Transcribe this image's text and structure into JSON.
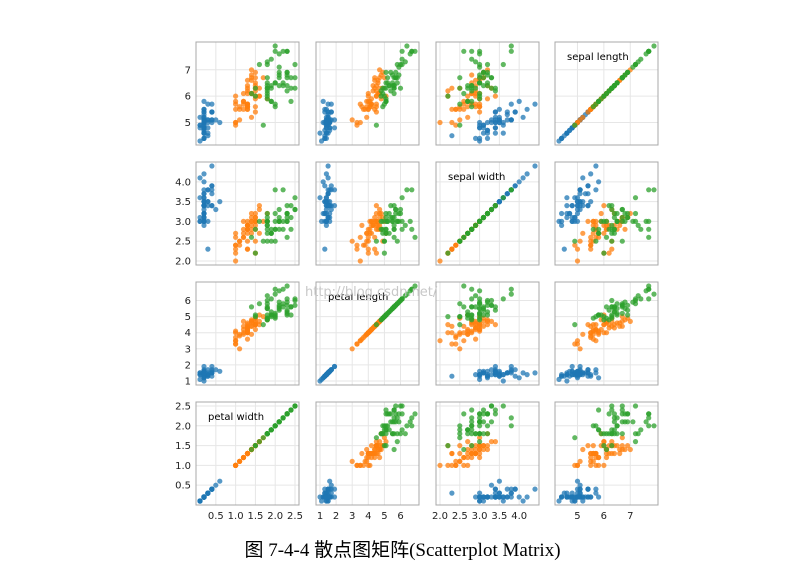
{
  "caption": "图 7-4-4  散点图矩阵(Scatterplot Matrix)",
  "watermark": "http://blog.csdn.net/",
  "chart_data": {
    "type": "scatter",
    "grid": true,
    "variables": [
      "sepal length",
      "sepal width",
      "petal length",
      "petal width"
    ],
    "diagonal_labels": [
      "sepal length",
      "sepal width",
      "petal length",
      "petal width"
    ],
    "ranges": [
      [
        4.3,
        7.9
      ],
      [
        2.0,
        4.4
      ],
      [
        1.0,
        6.9
      ],
      [
        0.1,
        2.5
      ]
    ],
    "ticks": [
      [
        "5",
        "6",
        "7"
      ],
      [
        "2.0",
        "2.5",
        "3.0",
        "3.5",
        "4.0"
      ],
      [
        "1",
        "2",
        "3",
        "4",
        "5",
        "6"
      ],
      [
        "0.5",
        "1.0",
        "1.5",
        "2.0",
        "2.5"
      ]
    ],
    "tick_values": [
      [
        5,
        6,
        7
      ],
      [
        2.0,
        2.5,
        3.0,
        3.5,
        4.0
      ],
      [
        1,
        2,
        3,
        4,
        5,
        6
      ],
      [
        0.5,
        1.0,
        1.5,
        2.0,
        2.5
      ]
    ],
    "series_colors": [
      "#1f77b4",
      "#ff7f0e",
      "#2ca02c"
    ],
    "series": [
      {
        "color": "#1f77b4",
        "points": [
          [
            5.1,
            3.5,
            1.4,
            0.2
          ],
          [
            4.9,
            3.0,
            1.4,
            0.2
          ],
          [
            4.7,
            3.2,
            1.3,
            0.2
          ],
          [
            4.6,
            3.1,
            1.5,
            0.2
          ],
          [
            5.0,
            3.6,
            1.4,
            0.2
          ],
          [
            5.4,
            3.9,
            1.7,
            0.4
          ],
          [
            4.6,
            3.4,
            1.4,
            0.3
          ],
          [
            5.0,
            3.4,
            1.5,
            0.2
          ],
          [
            4.4,
            2.9,
            1.4,
            0.2
          ],
          [
            4.9,
            3.1,
            1.5,
            0.1
          ],
          [
            5.4,
            3.7,
            1.5,
            0.2
          ],
          [
            4.8,
            3.4,
            1.6,
            0.2
          ],
          [
            4.8,
            3.0,
            1.4,
            0.1
          ],
          [
            4.3,
            3.0,
            1.1,
            0.1
          ],
          [
            5.8,
            4.0,
            1.2,
            0.2
          ],
          [
            5.7,
            4.4,
            1.5,
            0.4
          ],
          [
            5.4,
            3.9,
            1.3,
            0.4
          ],
          [
            5.1,
            3.5,
            1.4,
            0.3
          ],
          [
            5.7,
            3.8,
            1.7,
            0.3
          ],
          [
            5.1,
            3.8,
            1.5,
            0.3
          ],
          [
            5.4,
            3.4,
            1.7,
            0.2
          ],
          [
            5.1,
            3.7,
            1.5,
            0.4
          ],
          [
            4.6,
            3.6,
            1.0,
            0.2
          ],
          [
            5.1,
            3.3,
            1.7,
            0.5
          ],
          [
            4.8,
            3.4,
            1.9,
            0.2
          ],
          [
            5.0,
            3.0,
            1.6,
            0.2
          ],
          [
            5.0,
            3.4,
            1.6,
            0.4
          ],
          [
            5.2,
            3.5,
            1.5,
            0.2
          ],
          [
            5.2,
            3.4,
            1.4,
            0.2
          ],
          [
            4.7,
            3.2,
            1.6,
            0.2
          ],
          [
            4.8,
            3.1,
            1.6,
            0.2
          ],
          [
            5.4,
            3.4,
            1.5,
            0.4
          ],
          [
            5.2,
            4.1,
            1.5,
            0.1
          ],
          [
            5.5,
            4.2,
            1.4,
            0.2
          ],
          [
            4.9,
            3.1,
            1.5,
            0.2
          ],
          [
            5.0,
            3.2,
            1.2,
            0.2
          ],
          [
            5.5,
            3.5,
            1.3,
            0.2
          ],
          [
            4.9,
            3.6,
            1.4,
            0.1
          ],
          [
            4.4,
            3.0,
            1.3,
            0.2
          ],
          [
            5.1,
            3.4,
            1.5,
            0.2
          ],
          [
            5.0,
            3.5,
            1.3,
            0.3
          ],
          [
            4.5,
            2.3,
            1.3,
            0.3
          ],
          [
            4.4,
            3.2,
            1.3,
            0.2
          ],
          [
            5.0,
            3.5,
            1.6,
            0.6
          ],
          [
            5.1,
            3.8,
            1.9,
            0.4
          ],
          [
            4.8,
            3.0,
            1.4,
            0.3
          ],
          [
            5.1,
            3.8,
            1.6,
            0.2
          ],
          [
            4.6,
            3.2,
            1.4,
            0.2
          ],
          [
            5.3,
            3.7,
            1.5,
            0.2
          ],
          [
            5.0,
            3.3,
            1.4,
            0.2
          ]
        ]
      },
      {
        "color": "#ff7f0e",
        "points": [
          [
            7.0,
            3.2,
            4.7,
            1.4
          ],
          [
            6.4,
            3.2,
            4.5,
            1.5
          ],
          [
            6.9,
            3.1,
            4.9,
            1.5
          ],
          [
            5.5,
            2.3,
            4.0,
            1.3
          ],
          [
            6.5,
            2.8,
            4.6,
            1.5
          ],
          [
            5.7,
            2.8,
            4.5,
            1.3
          ],
          [
            6.3,
            3.3,
            4.7,
            1.6
          ],
          [
            4.9,
            2.4,
            3.3,
            1.0
          ],
          [
            6.6,
            2.9,
            4.6,
            1.3
          ],
          [
            5.2,
            2.7,
            3.9,
            1.4
          ],
          [
            5.0,
            2.0,
            3.5,
            1.0
          ],
          [
            5.9,
            3.0,
            4.2,
            1.5
          ],
          [
            6.0,
            2.2,
            4.0,
            1.0
          ],
          [
            6.1,
            2.9,
            4.7,
            1.4
          ],
          [
            5.6,
            2.9,
            3.6,
            1.3
          ],
          [
            6.7,
            3.1,
            4.4,
            1.4
          ],
          [
            5.6,
            3.0,
            4.5,
            1.5
          ],
          [
            5.8,
            2.7,
            4.1,
            1.0
          ],
          [
            6.2,
            2.2,
            4.5,
            1.5
          ],
          [
            5.6,
            2.5,
            3.9,
            1.1
          ],
          [
            5.9,
            3.2,
            4.8,
            1.8
          ],
          [
            6.1,
            2.8,
            4.0,
            1.3
          ],
          [
            6.3,
            2.5,
            4.9,
            1.5
          ],
          [
            6.1,
            2.8,
            4.7,
            1.2
          ],
          [
            6.4,
            2.9,
            4.3,
            1.3
          ],
          [
            6.6,
            3.0,
            4.4,
            1.4
          ],
          [
            6.8,
            2.8,
            4.8,
            1.4
          ],
          [
            6.7,
            3.0,
            5.0,
            1.7
          ],
          [
            6.0,
            2.9,
            4.5,
            1.5
          ],
          [
            5.7,
            2.6,
            3.5,
            1.0
          ],
          [
            5.5,
            2.4,
            3.8,
            1.1
          ],
          [
            5.5,
            2.4,
            3.7,
            1.0
          ],
          [
            5.8,
            2.7,
            3.9,
            1.2
          ],
          [
            6.0,
            2.7,
            5.1,
            1.6
          ],
          [
            5.4,
            3.0,
            4.5,
            1.5
          ],
          [
            6.0,
            3.4,
            4.5,
            1.6
          ],
          [
            6.7,
            3.1,
            4.7,
            1.5
          ],
          [
            6.3,
            2.3,
            4.4,
            1.3
          ],
          [
            5.6,
            3.0,
            4.1,
            1.3
          ],
          [
            5.5,
            2.5,
            4.0,
            1.3
          ],
          [
            5.5,
            2.6,
            4.4,
            1.2
          ],
          [
            6.1,
            3.0,
            4.6,
            1.4
          ],
          [
            5.8,
            2.6,
            4.0,
            1.2
          ],
          [
            5.0,
            2.3,
            3.3,
            1.0
          ],
          [
            5.6,
            2.7,
            4.2,
            1.3
          ],
          [
            5.7,
            3.0,
            4.2,
            1.2
          ],
          [
            5.7,
            2.9,
            4.2,
            1.3
          ],
          [
            6.2,
            2.9,
            4.3,
            1.3
          ],
          [
            5.1,
            2.5,
            3.0,
            1.1
          ],
          [
            5.7,
            2.8,
            4.1,
            1.3
          ]
        ]
      },
      {
        "color": "#2ca02c",
        "points": [
          [
            6.3,
            3.3,
            6.0,
            2.5
          ],
          [
            5.8,
            2.7,
            5.1,
            1.9
          ],
          [
            7.1,
            3.0,
            5.9,
            2.1
          ],
          [
            6.3,
            2.9,
            5.6,
            1.8
          ],
          [
            6.5,
            3.0,
            5.8,
            2.2
          ],
          [
            7.6,
            3.0,
            6.6,
            2.1
          ],
          [
            4.9,
            2.5,
            4.5,
            1.7
          ],
          [
            7.3,
            2.9,
            6.3,
            1.8
          ],
          [
            6.7,
            2.5,
            5.8,
            1.8
          ],
          [
            7.2,
            3.6,
            6.1,
            2.5
          ],
          [
            6.5,
            3.2,
            5.1,
            2.0
          ],
          [
            6.4,
            2.7,
            5.3,
            1.9
          ],
          [
            6.8,
            3.0,
            5.5,
            2.1
          ],
          [
            5.7,
            2.5,
            5.0,
            2.0
          ],
          [
            5.8,
            2.8,
            5.1,
            2.4
          ],
          [
            6.4,
            3.2,
            5.3,
            2.3
          ],
          [
            6.5,
            3.0,
            5.5,
            1.8
          ],
          [
            7.7,
            3.8,
            6.7,
            2.2
          ],
          [
            7.7,
            2.6,
            6.9,
            2.3
          ],
          [
            6.0,
            2.2,
            5.0,
            1.5
          ],
          [
            6.9,
            3.2,
            5.7,
            2.3
          ],
          [
            5.6,
            2.8,
            4.9,
            2.0
          ],
          [
            7.7,
            2.8,
            6.7,
            2.0
          ],
          [
            6.3,
            2.7,
            4.9,
            1.8
          ],
          [
            6.7,
            3.3,
            5.7,
            2.1
          ],
          [
            7.2,
            3.2,
            6.0,
            1.8
          ],
          [
            6.2,
            2.8,
            4.8,
            1.8
          ],
          [
            6.1,
            3.0,
            4.9,
            1.8
          ],
          [
            6.4,
            2.8,
            5.6,
            2.1
          ],
          [
            7.2,
            3.0,
            5.8,
            1.6
          ],
          [
            7.4,
            2.8,
            6.1,
            1.9
          ],
          [
            7.9,
            3.8,
            6.4,
            2.0
          ],
          [
            6.4,
            2.8,
            5.6,
            2.2
          ],
          [
            6.3,
            2.8,
            5.1,
            1.5
          ],
          [
            6.1,
            2.6,
            5.6,
            1.4
          ],
          [
            7.7,
            3.0,
            6.1,
            2.3
          ],
          [
            6.3,
            3.4,
            5.6,
            2.4
          ],
          [
            6.4,
            3.1,
            5.5,
            1.8
          ],
          [
            6.0,
            3.0,
            4.8,
            1.8
          ],
          [
            6.9,
            3.1,
            5.4,
            2.1
          ],
          [
            6.7,
            3.1,
            5.6,
            2.4
          ],
          [
            6.9,
            3.1,
            5.1,
            2.3
          ],
          [
            5.8,
            2.7,
            5.1,
            1.9
          ],
          [
            6.8,
            3.2,
            5.9,
            2.3
          ],
          [
            6.7,
            3.3,
            5.7,
            2.5
          ],
          [
            6.7,
            3.0,
            5.2,
            2.3
          ],
          [
            6.3,
            2.5,
            5.0,
            1.9
          ],
          [
            6.5,
            3.0,
            5.2,
            2.0
          ],
          [
            6.2,
            3.4,
            5.4,
            2.3
          ],
          [
            5.9,
            3.0,
            5.1,
            1.8
          ]
        ]
      }
    ]
  }
}
